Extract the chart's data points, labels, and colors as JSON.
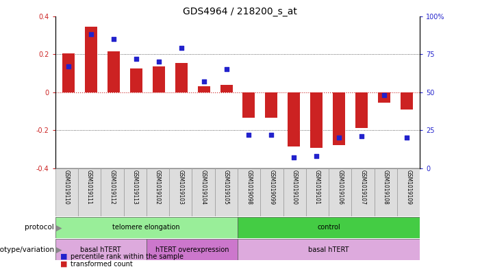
{
  "title": "GDS4964 / 218200_s_at",
  "samples": [
    "GSM1019110",
    "GSM1019111",
    "GSM1019112",
    "GSM1019113",
    "GSM1019102",
    "GSM1019103",
    "GSM1019104",
    "GSM1019105",
    "GSM1019098",
    "GSM1019099",
    "GSM1019100",
    "GSM1019101",
    "GSM1019106",
    "GSM1019107",
    "GSM1019108",
    "GSM1019109"
  ],
  "bar_values": [
    0.205,
    0.345,
    0.215,
    0.125,
    0.135,
    0.155,
    0.03,
    0.04,
    -0.135,
    -0.135,
    -0.285,
    -0.295,
    -0.28,
    -0.19,
    -0.055,
    -0.09
  ],
  "dot_values": [
    67,
    88,
    85,
    72,
    70,
    79,
    57,
    65,
    22,
    22,
    7,
    8,
    20,
    21,
    48,
    20
  ],
  "ylim_left": [
    -0.4,
    0.4
  ],
  "ylim_right": [
    0,
    100
  ],
  "yticks_left": [
    -0.4,
    -0.2,
    0.0,
    0.2,
    0.4
  ],
  "ytick_labels_left": [
    "-0.4",
    "-0.2",
    "0",
    "0.2",
    "0.4"
  ],
  "yticks_right": [
    0,
    25,
    50,
    75,
    100
  ],
  "ytick_labels_right": [
    "0",
    "25",
    "50",
    "75",
    "100%"
  ],
  "bar_color": "#cc2222",
  "dot_color": "#2222cc",
  "zero_line_color": "#cc2222",
  "dotted_line_color": "#333333",
  "cell_bg_color": "#dddddd",
  "cell_edge_color": "#999999",
  "protocol_labels": [
    {
      "text": "telomere elongation",
      "start": 0,
      "end": 7,
      "color": "#99ee99"
    },
    {
      "text": "control",
      "start": 8,
      "end": 15,
      "color": "#44cc44"
    }
  ],
  "genotype_labels": [
    {
      "text": "basal hTERT",
      "start": 0,
      "end": 3,
      "color": "#ddaadd"
    },
    {
      "text": "hTERT overexpression",
      "start": 4,
      "end": 7,
      "color": "#cc77cc"
    },
    {
      "text": "basal hTERT",
      "start": 8,
      "end": 15,
      "color": "#ddaadd"
    }
  ],
  "protocol_row_label": "protocol",
  "genotype_row_label": "genotype/variation",
  "legend_items": [
    {
      "label": "transformed count",
      "color": "#cc2222"
    },
    {
      "label": "percentile rank within the sample",
      "color": "#2222cc"
    }
  ],
  "tick_fontsize": 7,
  "label_fontsize": 7.5,
  "title_fontsize": 10,
  "arrow_color": "#888888"
}
